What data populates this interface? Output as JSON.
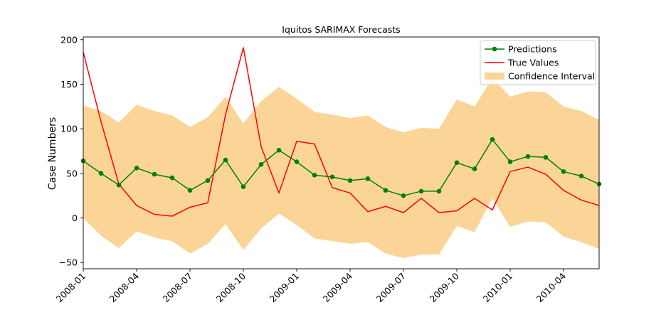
{
  "chart_data": {
    "type": "line",
    "title": "Iquitos SARIMAX Forecasts",
    "xlabel": "",
    "ylabel": "Case Numbers",
    "xlim": [
      "2008-01",
      "2010-06"
    ],
    "ylim": [
      -57,
      203
    ],
    "grid": false,
    "legend_position": "top-right",
    "x": [
      "2008-01",
      "2008-02",
      "2008-03",
      "2008-04",
      "2008-05",
      "2008-06",
      "2008-07",
      "2008-08",
      "2008-09",
      "2008-10",
      "2008-11",
      "2008-12",
      "2009-01",
      "2009-02",
      "2009-03",
      "2009-04",
      "2009-05",
      "2009-06",
      "2009-07",
      "2009-08",
      "2009-09",
      "2009-10",
      "2009-11",
      "2009-12",
      "2010-01",
      "2010-02",
      "2010-03",
      "2010-04",
      "2010-05",
      "2010-06"
    ],
    "x_tick_labels": [
      "2008-01",
      "2008-04",
      "2008-07",
      "2008-10",
      "2009-01",
      "2009-04",
      "2009-07",
      "2009-10",
      "2010-01",
      "2010-04"
    ],
    "y_tick_labels": [
      "200",
      "150",
      "100",
      "50",
      "0",
      "−50"
    ],
    "y_ticks": [
      200,
      150,
      100,
      50,
      0,
      -50
    ],
    "series": [
      {
        "name": "Predictions",
        "color": "#008000",
        "marker": "circle",
        "values": [
          64,
          50,
          37,
          56,
          49,
          45,
          31,
          42,
          65,
          35,
          60,
          76,
          63,
          48,
          46,
          42,
          44,
          31,
          25,
          30,
          30,
          62,
          55,
          88,
          63,
          69,
          68,
          52,
          47,
          38
        ]
      },
      {
        "name": "True Values",
        "color": "#ff0000",
        "values": [
          186,
          108,
          38,
          14,
          4,
          2,
          12,
          17,
          116,
          191,
          80,
          28,
          86,
          83,
          34,
          28,
          7,
          13,
          6,
          22,
          6,
          8,
          22,
          9,
          52,
          57,
          49,
          31,
          20,
          14
        ]
      }
    ],
    "confidence_interval": {
      "name": "Confidence Interval",
      "color": "#fbd598",
      "upper": [
        126,
        120,
        107,
        127,
        120,
        115,
        102,
        113,
        136,
        106,
        131,
        147,
        134,
        119,
        116,
        112,
        115,
        102,
        96,
        101,
        100,
        133,
        125,
        157,
        136,
        142,
        141,
        125,
        120,
        110
      ],
      "lower": [
        0,
        -20,
        -34,
        -15,
        -22,
        -26,
        -40,
        -29,
        -7,
        -36,
        -12,
        5,
        -8,
        -23,
        -26,
        -29,
        -27,
        -40,
        -45,
        -41,
        -41,
        -9,
        -16,
        22,
        -10,
        -4,
        -5,
        -21,
        -27,
        -35
      ]
    }
  }
}
